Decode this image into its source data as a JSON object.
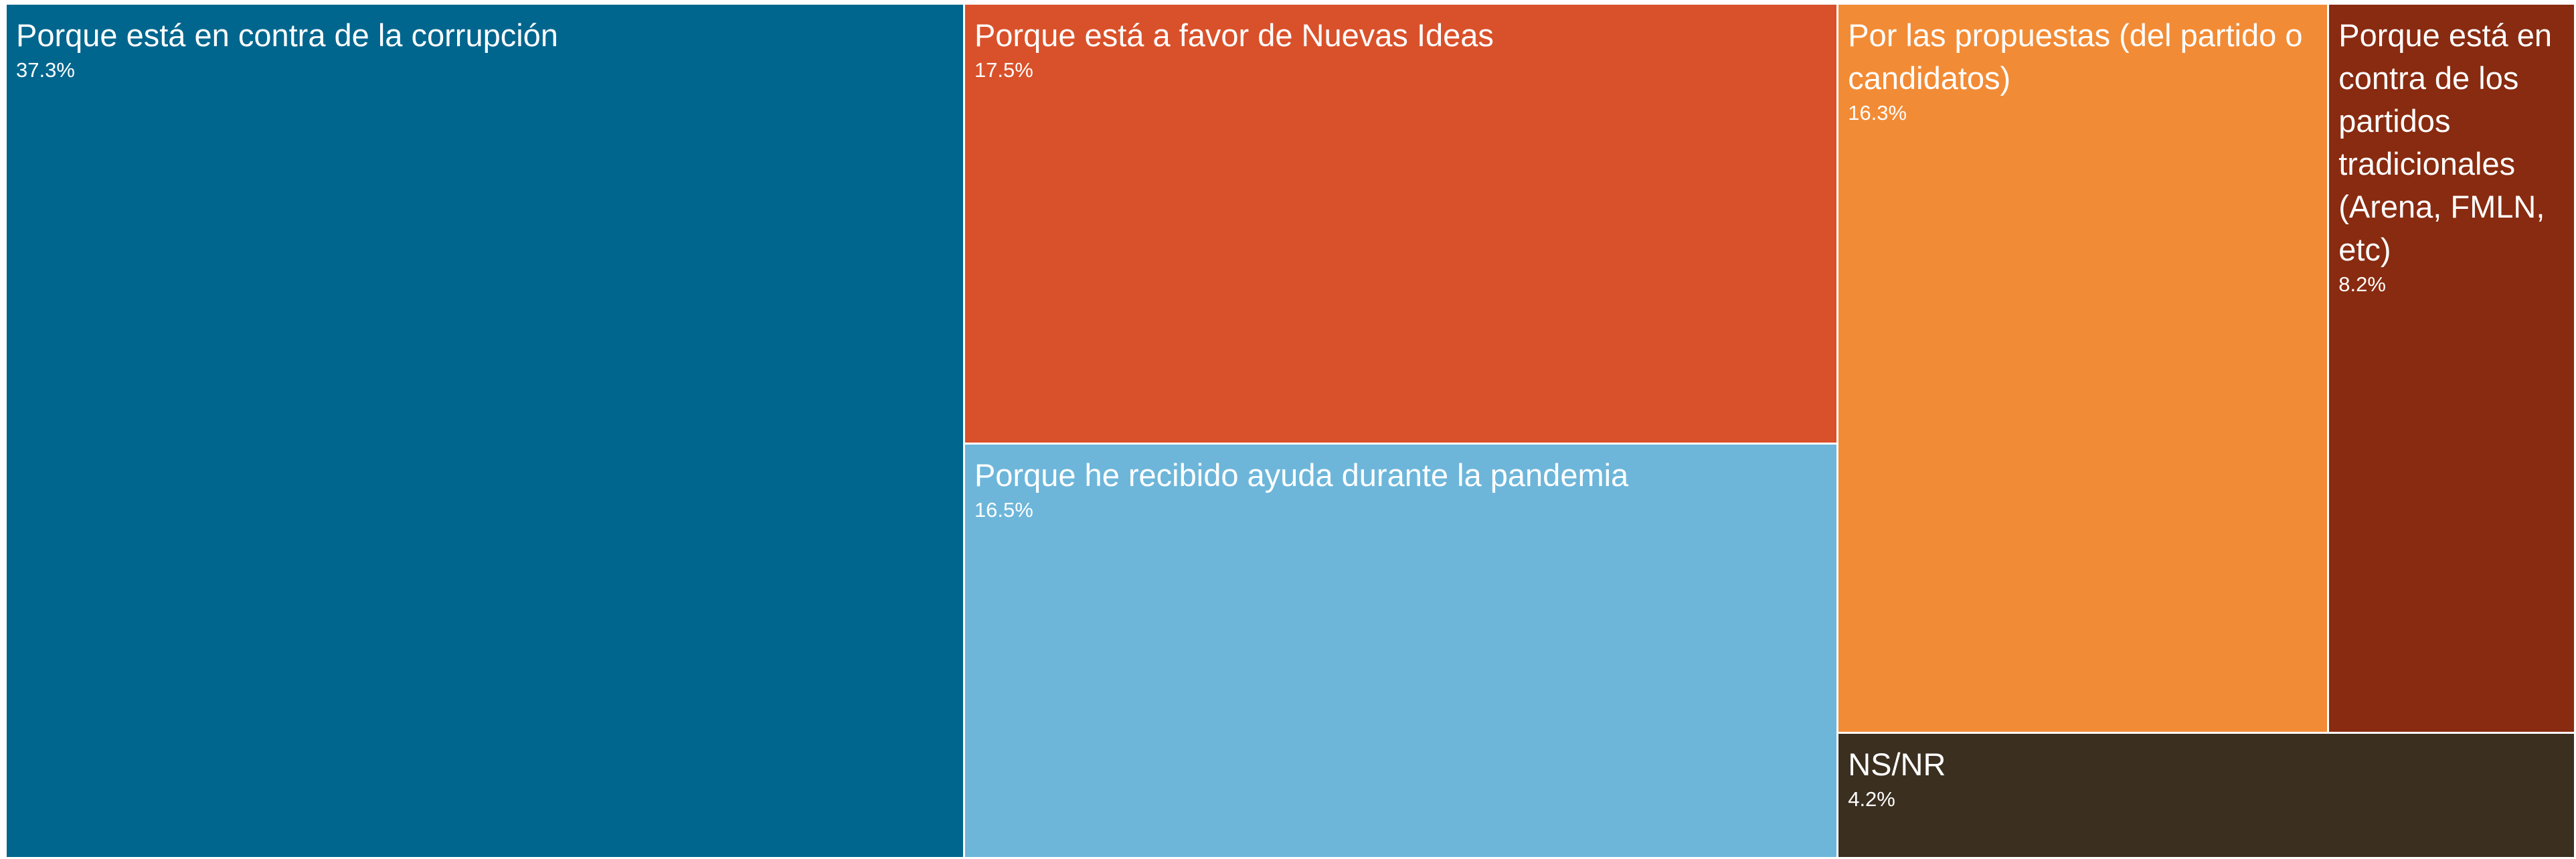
{
  "chart_data": {
    "type": "treemap",
    "categories": [
      "Porque está en contra de la corrupción",
      "Porque está a favor de Nuevas Ideas",
      "Porque he recibido ayuda durante la pandemia",
      "Por las propuestas (del partido o candidatos)",
      "Porque está en contra de los partidos tradicionales (Arena, FMLN, etc)",
      "NS/NR"
    ],
    "values": [
      37.3,
      17.5,
      16.5,
      16.3,
      8.2,
      4.2
    ],
    "value_labels": [
      "37.3%",
      "17.5%",
      "16.5%",
      "16.3%",
      "8.2%",
      "4.2%"
    ],
    "colors": [
      "#00668e",
      "#d9512a",
      "#6db6da",
      "#f28b35",
      "#882b10",
      "#3b2f20"
    ]
  }
}
